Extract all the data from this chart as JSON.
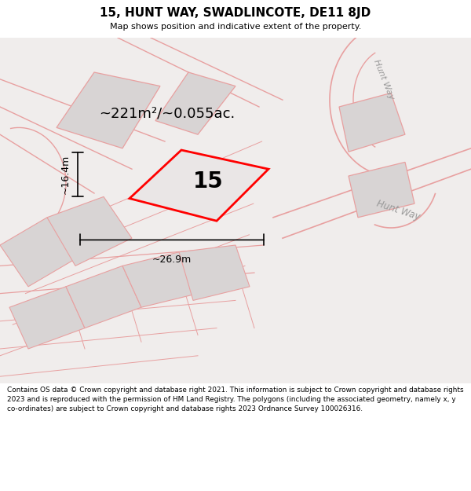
{
  "title": "15, HUNT WAY, SWADLINCOTE, DE11 8JD",
  "subtitle": "Map shows position and indicative extent of the property.",
  "footer": "Contains OS data © Crown copyright and database right 2021. This information is subject to Crown copyright and database rights 2023 and is reproduced with the permission of HM Land Registry. The polygons (including the associated geometry, namely x, y co-ordinates) are subject to Crown copyright and database rights 2023 Ordnance Survey 100026316.",
  "area_label": "~221m²/~0.055ac.",
  "plot_number": "15",
  "dim_width": "~26.9m",
  "dim_height": "~16.4m",
  "road_label_top": "Hunt Way",
  "road_label_bottom": "Hunt Way",
  "plot_color": "#ff0000",
  "road_color": "#e8a0a0",
  "parcel_edge": "#e8a0a0",
  "parcel_fill": "#d8d4d4",
  "map_bg": "#f0edec",
  "white": "#ffffff"
}
